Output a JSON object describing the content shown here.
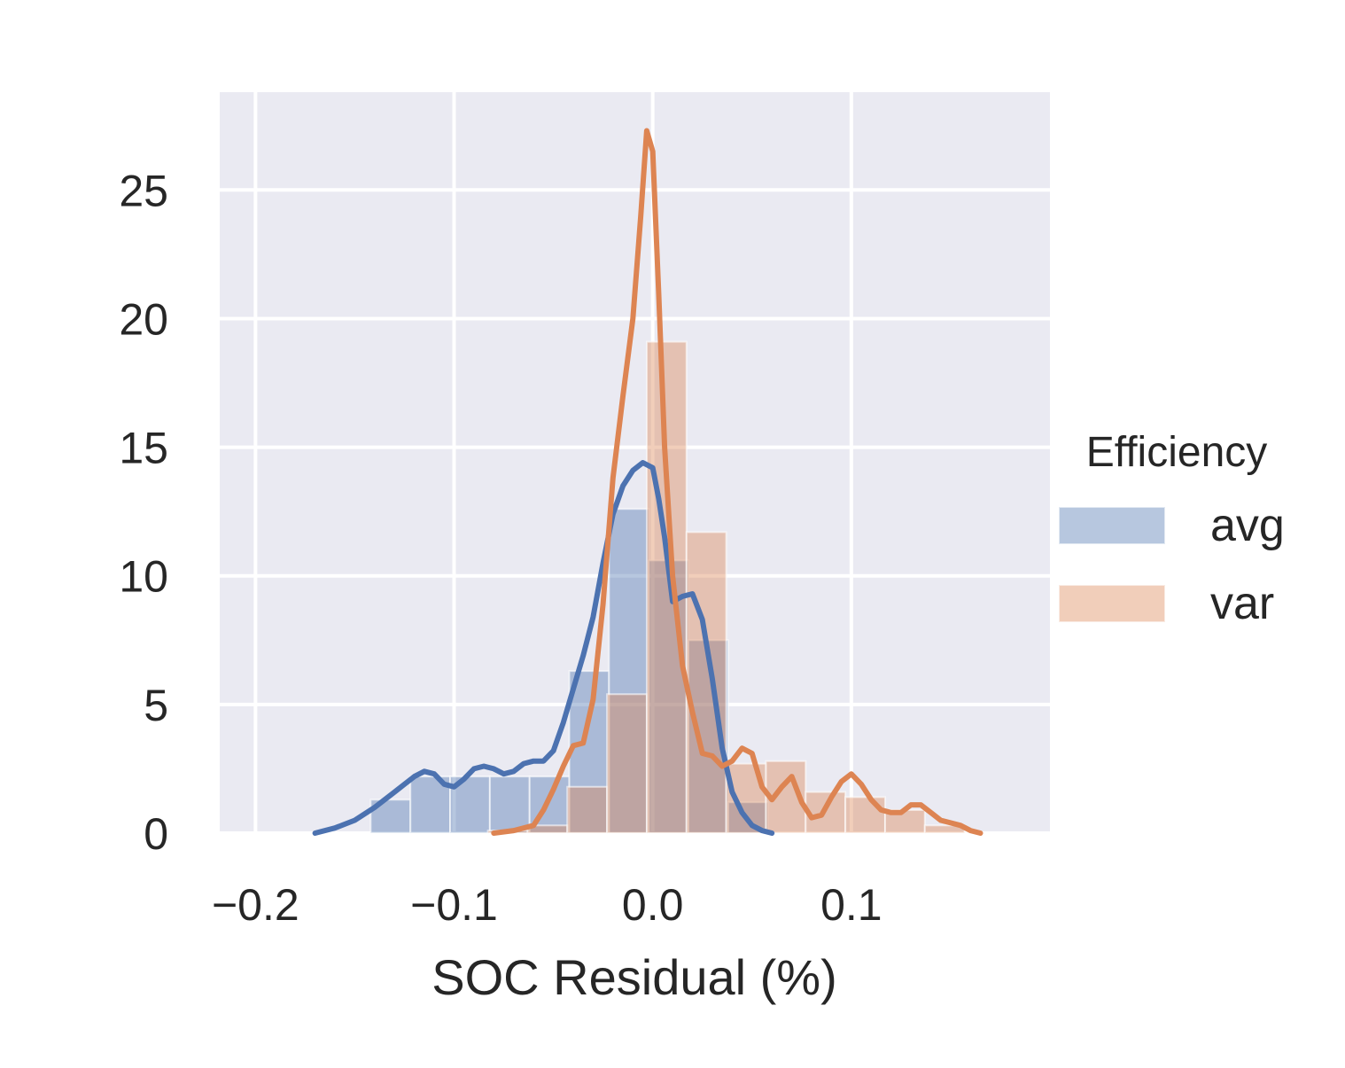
{
  "chart_data": {
    "type": "bar",
    "xlabel": "SOC Residual (%)",
    "ylabel": "",
    "xlim": [
      -0.218,
      0.2
    ],
    "ylim": [
      0,
      28.8
    ],
    "xticks": [
      -0.2,
      -0.1,
      0.0,
      0.1
    ],
    "xtick_labels": [
      "−0.2",
      "−0.1",
      "0.0",
      "0.1"
    ],
    "yticks": [
      0,
      5,
      10,
      15,
      20,
      25
    ],
    "ytick_labels": [
      "0",
      "5",
      "10",
      "15",
      "20",
      "25"
    ],
    "grid": true,
    "background": "#eaeaf2",
    "legend": {
      "title": "Efficiency",
      "placement": "center-right outside",
      "entries": [
        "avg",
        "var"
      ]
    },
    "series": [
      {
        "name": "avg",
        "color": "#4c72b0",
        "histogram": {
          "bin_edges": [
            -0.142,
            -0.122,
            -0.102,
            -0.082,
            -0.062,
            -0.042,
            -0.022,
            -0.002,
            0.018,
            0.038,
            0.058
          ],
          "values": [
            1.3,
            2.2,
            2.2,
            2.2,
            2.2,
            6.3,
            12.6,
            10.6,
            7.5,
            1.2
          ]
        },
        "kde": {
          "x": [
            -0.17,
            -0.16,
            -0.15,
            -0.14,
            -0.13,
            -0.125,
            -0.12,
            -0.115,
            -0.11,
            -0.105,
            -0.1,
            -0.095,
            -0.09,
            -0.085,
            -0.08,
            -0.075,
            -0.07,
            -0.065,
            -0.06,
            -0.055,
            -0.05,
            -0.045,
            -0.04,
            -0.035,
            -0.03,
            -0.025,
            -0.02,
            -0.015,
            -0.01,
            -0.005,
            0.0,
            0.003,
            0.006,
            0.01,
            0.015,
            0.02,
            0.025,
            0.03,
            0.035,
            0.04,
            0.045,
            0.05,
            0.055,
            0.06
          ],
          "y": [
            0.0,
            0.2,
            0.5,
            1.0,
            1.6,
            1.9,
            2.2,
            2.4,
            2.3,
            1.9,
            1.8,
            2.1,
            2.5,
            2.6,
            2.5,
            2.3,
            2.4,
            2.7,
            2.8,
            2.8,
            3.2,
            4.3,
            5.6,
            6.9,
            8.4,
            10.5,
            12.4,
            13.5,
            14.1,
            14.4,
            14.2,
            13.0,
            11.5,
            9.0,
            9.2,
            9.3,
            8.3,
            6.0,
            3.3,
            1.6,
            0.8,
            0.3,
            0.1,
            0.0
          ]
        }
      },
      {
        "name": "var",
        "color": "#dd8452",
        "histogram": {
          "bin_edges": [
            -0.083,
            -0.063,
            -0.043,
            -0.023,
            -0.003,
            0.017,
            0.037,
            0.057,
            0.077,
            0.097,
            0.117,
            0.137,
            0.157
          ],
          "values": [
            0.1,
            0.3,
            1.8,
            5.4,
            19.1,
            11.7,
            2.7,
            2.8,
            1.6,
            1.4,
            0.9,
            0.3
          ]
        },
        "kde": {
          "x": [
            -0.08,
            -0.07,
            -0.06,
            -0.055,
            -0.05,
            -0.045,
            -0.04,
            -0.035,
            -0.03,
            -0.025,
            -0.02,
            -0.015,
            -0.01,
            -0.006,
            -0.003,
            0.0,
            0.003,
            0.006,
            0.01,
            0.015,
            0.02,
            0.025,
            0.03,
            0.035,
            0.04,
            0.045,
            0.05,
            0.055,
            0.06,
            0.065,
            0.07,
            0.075,
            0.08,
            0.085,
            0.09,
            0.095,
            0.1,
            0.105,
            0.11,
            0.115,
            0.12,
            0.125,
            0.13,
            0.135,
            0.14,
            0.145,
            0.15,
            0.155,
            0.16,
            0.165
          ],
          "y": [
            0.0,
            0.1,
            0.3,
            0.9,
            1.7,
            2.6,
            3.4,
            3.5,
            5.2,
            8.9,
            13.8,
            17.0,
            20.0,
            24.0,
            27.3,
            26.5,
            21.0,
            15.0,
            10.0,
            6.5,
            4.7,
            3.1,
            3.0,
            2.6,
            2.8,
            3.3,
            3.1,
            1.8,
            1.3,
            1.8,
            2.2,
            1.2,
            0.6,
            0.7,
            1.4,
            2.0,
            2.3,
            1.9,
            1.3,
            0.9,
            0.8,
            0.8,
            1.1,
            1.1,
            0.8,
            0.5,
            0.4,
            0.3,
            0.1,
            0.0
          ]
        }
      }
    ]
  }
}
